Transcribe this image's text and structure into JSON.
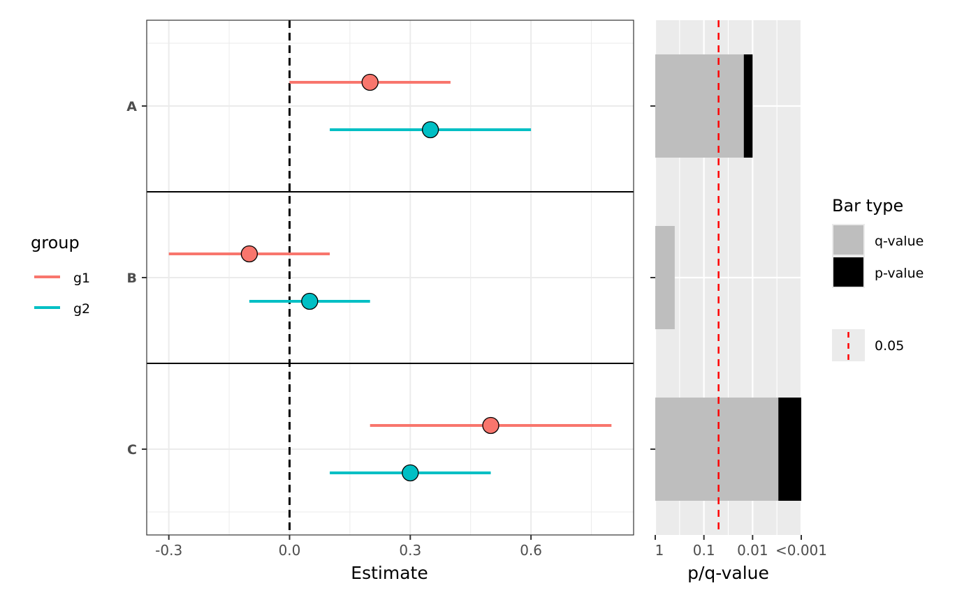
{
  "chart_data": [
    {
      "type": "forest",
      "title": "",
      "xlabel": "Estimate",
      "ylabel": "",
      "xlim": [
        -0.355,
        0.855
      ],
      "x_ticks": [
        -0.3,
        0.0,
        0.3,
        0.6
      ],
      "x_tick_labels": [
        "-0.3",
        "0.0",
        "0.3",
        "0.6"
      ],
      "categories": [
        "A",
        "B",
        "C"
      ],
      "reference_line": 0,
      "grid": true,
      "series": [
        {
          "name": "g1",
          "color": "#F8766D",
          "estimates": [
            0.2,
            -0.1,
            0.5
          ],
          "lower": [
            0.0,
            -0.3,
            0.2
          ],
          "upper": [
            0.4,
            0.1,
            0.8
          ]
        },
        {
          "name": "g2",
          "color": "#00BFC4",
          "estimates": [
            0.35,
            0.05,
            0.3
          ],
          "lower": [
            0.1,
            -0.1,
            0.1
          ],
          "upper": [
            0.6,
            0.2,
            0.5
          ]
        }
      ],
      "legend": {
        "title": "group",
        "placement": "left",
        "entries": [
          "g1",
          "g2"
        ]
      }
    },
    {
      "type": "bar",
      "orientation": "horizontal",
      "xlabel": "p/q-value",
      "x_scale": "-log10",
      "xlim": [
        0,
        3
      ],
      "x_ticks": [
        0,
        1,
        2,
        3
      ],
      "x_tick_labels": [
        "1",
        "0.1",
        "0.01",
        "<0.001"
      ],
      "categories": [
        "A",
        "B",
        "C"
      ],
      "series": [
        {
          "name": "q-value",
          "color": "#BEBEBE",
          "neg_log10_values": [
            1.82,
            0.4,
            2.53
          ]
        },
        {
          "name": "p-value",
          "color": "#000000",
          "neg_log10_values": [
            2.0,
            0.3,
            3.0
          ]
        }
      ],
      "threshold": {
        "value": 0.05,
        "label": "0.05",
        "color": "#FF0000",
        "style": "dashed"
      },
      "legend": {
        "title": "Bar type",
        "placement": "right",
        "entries": [
          "q-value",
          "p-value"
        ],
        "line_entry": "0.05"
      }
    }
  ]
}
